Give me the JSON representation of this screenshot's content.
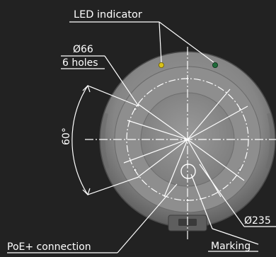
{
  "callouts": {
    "led_indicator": "LED indicator",
    "hole_diameter": "Ø66",
    "hole_count": "6 holes",
    "angle": "60°",
    "outer_diameter": "Ø235",
    "marking": "Marking",
    "poe_connection": "PoE+ connection"
  },
  "colors": {
    "background": "#222222",
    "body_grey": "#8c8c8c",
    "rim_grey": "#a6a6a6",
    "line_white": "#ffffff",
    "led_yellow": "#d8c21a",
    "led_green": "#1f6b3a"
  }
}
